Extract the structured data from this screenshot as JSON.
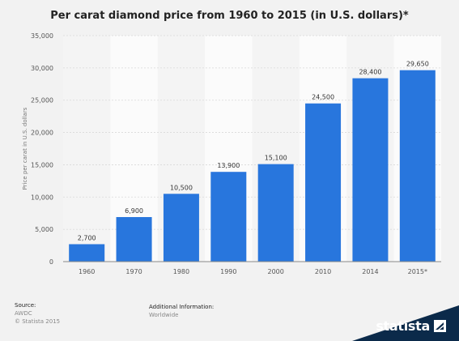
{
  "chart_data": {
    "type": "bar",
    "title": "Per carat diamond price from 1960 to 2015 (in U.S. dollars)*",
    "ylabel": "Price per carat in U.S. dollars",
    "xlabel": "",
    "categories": [
      "1960",
      "1970",
      "1980",
      "1990",
      "2000",
      "2010",
      "2014",
      "2015*"
    ],
    "values": [
      2700,
      6900,
      10500,
      13900,
      15100,
      24500,
      28400,
      29650
    ],
    "value_labels": [
      "2,700",
      "6,900",
      "10,500",
      "13,900",
      "15,100",
      "24,500",
      "28,400",
      "29,650"
    ],
    "ylim": [
      0,
      35000
    ],
    "yticks": [
      0,
      5000,
      10000,
      15000,
      20000,
      25000,
      30000,
      35000
    ],
    "ytick_labels": [
      "0",
      "5,000",
      "10,000",
      "15,000",
      "20,000",
      "25,000",
      "30,000",
      "35,000"
    ],
    "grid": true,
    "bar_color": "#2876dd"
  },
  "footer": {
    "source_label": "Source:",
    "source_value": "AWDC",
    "copyright": "© Statista 2015",
    "additional_label": "Additional Information:",
    "additional_value": "Worldwide"
  },
  "brand": {
    "name": "statista",
    "color": "#0b2a4a",
    "icon": "statista-logo-icon"
  }
}
